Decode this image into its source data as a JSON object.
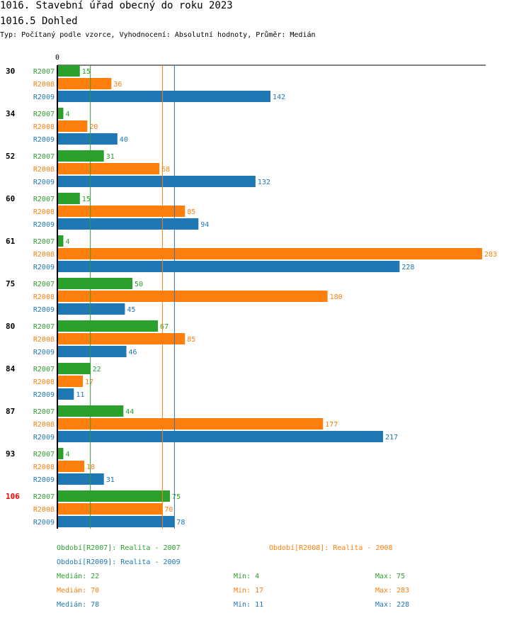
{
  "header": {
    "title": "1016. Stavební úřad obecný do roku 2023",
    "subtitle": "1016.5 Dohled",
    "description": "Typ: Počítaný podle vzorce, Vyhodnocení: Absolutní hodnoty, Průměr: Medián"
  },
  "colors": {
    "R2007": "#2ca02c",
    "R2008": "#ff7f0e",
    "R2009": "#1f77b4",
    "highlight": "#ff0000"
  },
  "chart_data": {
    "type": "bar",
    "orientation": "horizontal",
    "axis_zero_label": "0",
    "xlim": [
      0,
      283
    ],
    "categories": [
      "30",
      "34",
      "52",
      "60",
      "61",
      "75",
      "80",
      "84",
      "87",
      "93",
      "106"
    ],
    "highlighted_category": "106",
    "series": [
      {
        "name": "R2007",
        "values": [
          15,
          4,
          31,
          15,
          4,
          50,
          67,
          22,
          44,
          4,
          75
        ]
      },
      {
        "name": "R2008",
        "values": [
          36,
          20,
          68,
          85,
          283,
          180,
          85,
          17,
          177,
          18,
          70
        ]
      },
      {
        "name": "R2009",
        "values": [
          142,
          40,
          132,
          94,
          228,
          45,
          46,
          11,
          217,
          31,
          78
        ]
      }
    ],
    "median_lines": [
      {
        "series": "R2007",
        "value": 22
      },
      {
        "series": "R2008",
        "value": 70
      },
      {
        "series": "R2009",
        "value": 78
      }
    ]
  },
  "legend": {
    "periods": [
      {
        "series": "R2007",
        "label": "Období[R2007]: Realita - 2007"
      },
      {
        "series": "R2008",
        "label": "Období[R2008]: Realita - 2008"
      },
      {
        "series": "R2009",
        "label": "Období[R2009]: Realita - 2009"
      }
    ],
    "stats": [
      {
        "series": "R2007",
        "median": "Medián: 22",
        "min": "Min: 4",
        "max": "Max: 75"
      },
      {
        "series": "R2008",
        "median": "Medián: 70",
        "min": "Min: 17",
        "max": "Max: 283"
      },
      {
        "series": "R2009",
        "median": "Medián: 78",
        "min": "Min: 11",
        "max": "Max: 228"
      }
    ]
  }
}
